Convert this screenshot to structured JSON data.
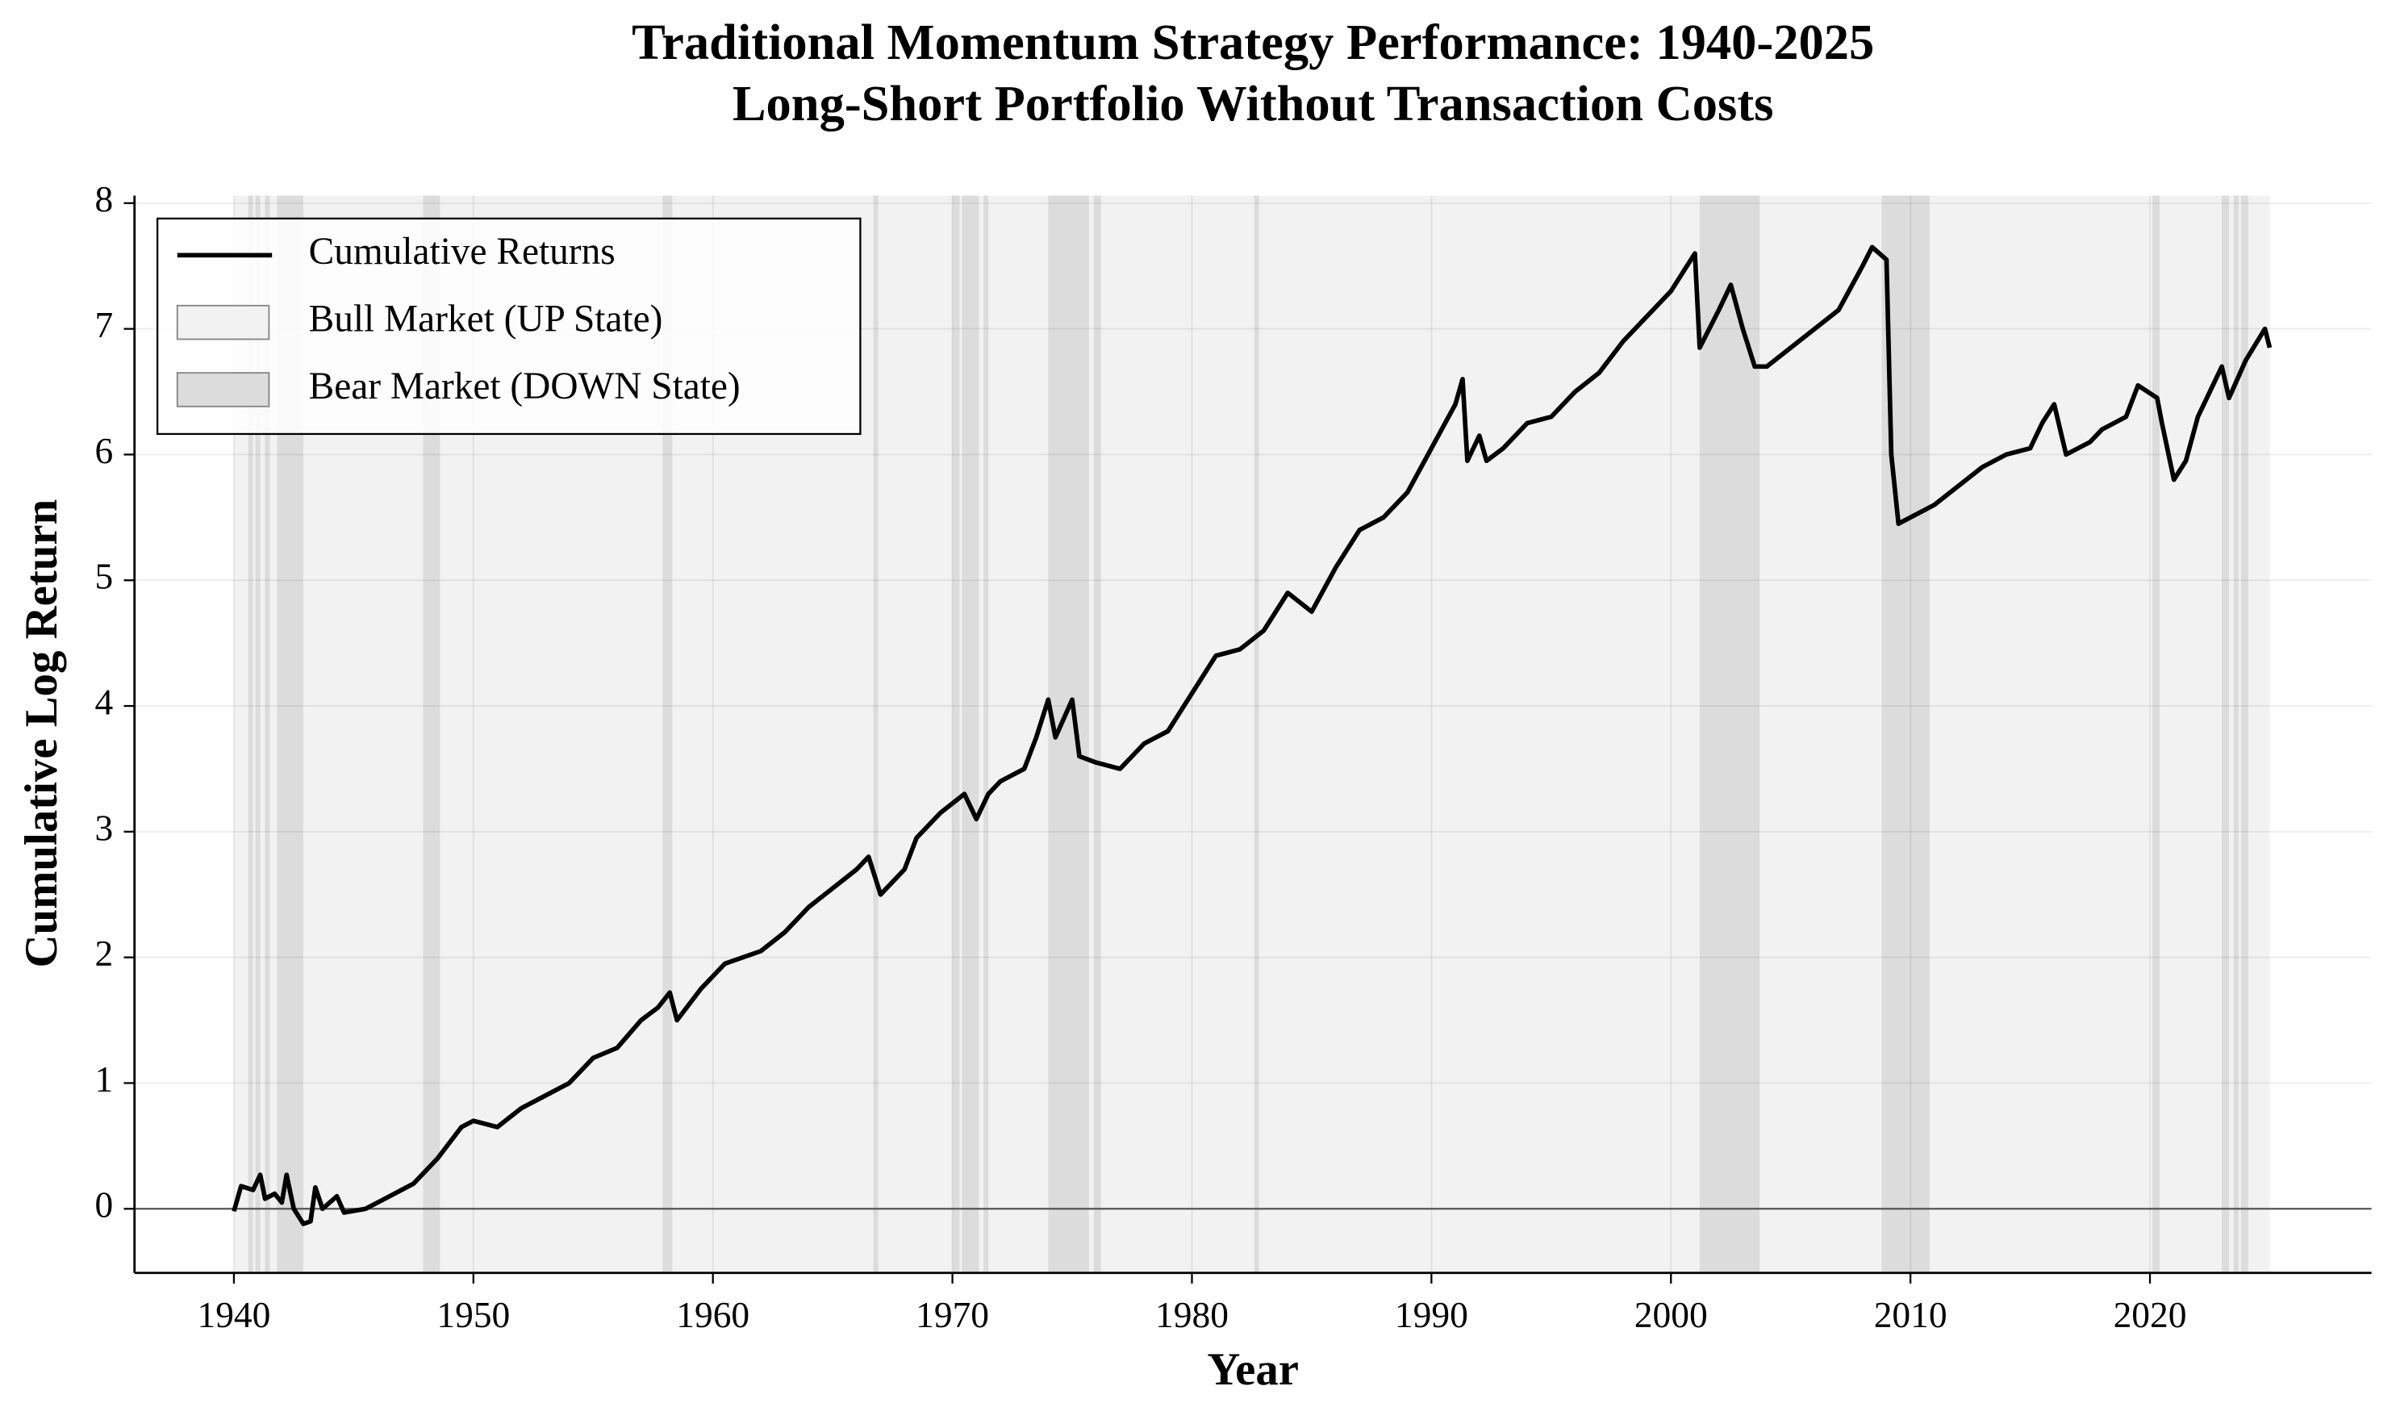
{
  "chart_data": {
    "type": "line",
    "title": "Traditional Momentum Strategy Performance: 1940-2025",
    "subtitle": "Long-Short Portfolio Without Transaction Costs",
    "xlabel": "Year",
    "ylabel": "Cumulative Log Return",
    "x": [
      1940.0,
      1940.3,
      1940.8,
      1941.1,
      1941.3,
      1941.7,
      1942.0,
      1942.2,
      1942.5,
      1942.9,
      1943.2,
      1943.4,
      1943.7,
      1944.3,
      1944.6,
      1945.5,
      1946.5,
      1947.5,
      1948.5,
      1949.5,
      1950,
      1951,
      1952,
      1953,
      1954,
      1955,
      1956,
      1957,
      1957.7,
      1958.2,
      1958.5,
      1959.5,
      1960.5,
      1962,
      1963,
      1964,
      1965,
      1966,
      1966.5,
      1967,
      1968,
      1968.5,
      1969.5,
      1970.5,
      1971,
      1971.5,
      1972,
      1973,
      1973.5,
      1974,
      1974.3,
      1975,
      1975.3,
      1976,
      1977,
      1978,
      1979,
      1980,
      1981,
      1982,
      1983,
      1984,
      1985,
      1986,
      1987,
      1988,
      1989,
      1990,
      1991,
      1991.3,
      1991.5,
      1992,
      1992.3,
      1993,
      1994,
      1995,
      1996,
      1997,
      1998,
      1999,
      2000,
      2001,
      2001.2,
      2002,
      2002.5,
      2003,
      2003.5,
      2004,
      2005,
      2006,
      2007,
      2008,
      2008.4,
      2009,
      2009.2,
      2009.5,
      2010,
      2011,
      2012,
      2013,
      2014,
      2015,
      2015.5,
      2016,
      2016.5,
      2017.5,
      2018,
      2019,
      2019.5,
      2020.3,
      2020.5,
      2021,
      2021.5,
      2022,
      2023,
      2023.3,
      2024,
      2024.8,
      2025
    ],
    "series": [
      {
        "name": "Cumulative Returns",
        "color": "#000000",
        "values": [
          -0.02,
          0.18,
          0.15,
          0.27,
          0.08,
          0.12,
          0.05,
          0.27,
          0.0,
          -0.12,
          -0.1,
          0.17,
          0.0,
          0.1,
          -0.03,
          0.0,
          0.1,
          0.2,
          0.4,
          0.65,
          0.7,
          0.65,
          0.8,
          0.9,
          1.0,
          1.2,
          1.28,
          1.5,
          1.6,
          1.72,
          1.5,
          1.75,
          1.95,
          2.05,
          2.2,
          2.4,
          2.55,
          2.7,
          2.8,
          2.5,
          2.7,
          2.95,
          3.15,
          3.3,
          3.1,
          3.3,
          3.4,
          3.5,
          3.75,
          4.05,
          3.75,
          4.05,
          3.6,
          3.55,
          3.5,
          3.7,
          3.8,
          4.1,
          4.4,
          4.45,
          4.6,
          4.9,
          4.75,
          5.1,
          5.4,
          5.5,
          5.7,
          6.05,
          6.4,
          6.6,
          5.95,
          6.15,
          5.95,
          6.05,
          6.25,
          6.3,
          6.5,
          6.65,
          6.9,
          7.1,
          7.3,
          7.6,
          6.85,
          7.15,
          7.35,
          7.0,
          6.7,
          6.7,
          6.85,
          7.0,
          7.15,
          7.5,
          7.65,
          7.55,
          6.0,
          5.45,
          5.5,
          5.6,
          5.75,
          5.9,
          6.0,
          6.05,
          6.25,
          6.4,
          6.0,
          6.1,
          6.2,
          6.3,
          6.55,
          6.45,
          6.25,
          5.8,
          5.95,
          6.3,
          6.7,
          6.45,
          6.75,
          7.0,
          6.85
        ]
      }
    ],
    "shaded_regions": [
      {
        "name": "Bull Market (UP State)",
        "color": "#f2f2f2",
        "spans": [
          [
            1940,
            2025
          ]
        ]
      },
      {
        "name": "Bear Market (DOWN State)",
        "color": "#dcdcdc",
        "spans": [
          [
            1940.6,
            1940.8
          ],
          [
            1940.9,
            1941.1
          ],
          [
            1941.3,
            1941.5
          ],
          [
            1941.8,
            1942.9
          ],
          [
            1947.9,
            1948.6
          ],
          [
            1957.9,
            1958.3
          ],
          [
            1966.7,
            1966.9
          ],
          [
            1970.0,
            1970.3
          ],
          [
            1970.4,
            1971.1
          ],
          [
            1971.3,
            1971.5
          ],
          [
            1974.0,
            1975.7
          ],
          [
            1975.9,
            1976.2
          ],
          [
            1982.6,
            1982.8
          ],
          [
            2001.2,
            2003.7
          ],
          [
            2008.8,
            2010.8
          ],
          [
            2020.1,
            2020.4
          ],
          [
            2023.0,
            2023.3
          ],
          [
            2023.5,
            2023.7
          ],
          [
            2023.8,
            2024.1
          ]
        ]
      }
    ],
    "hline": 0,
    "xlim": [
      1935.85,
      2029.25
    ],
    "ylim": [
      -0.51,
      8.06
    ],
    "xticks": [
      1940,
      1950,
      1960,
      1970,
      1980,
      1990,
      2000,
      2010,
      2020
    ],
    "yticks": [
      0,
      1,
      2,
      3,
      4,
      5,
      6,
      7,
      8
    ],
    "grid": true,
    "legend": "upper left"
  }
}
